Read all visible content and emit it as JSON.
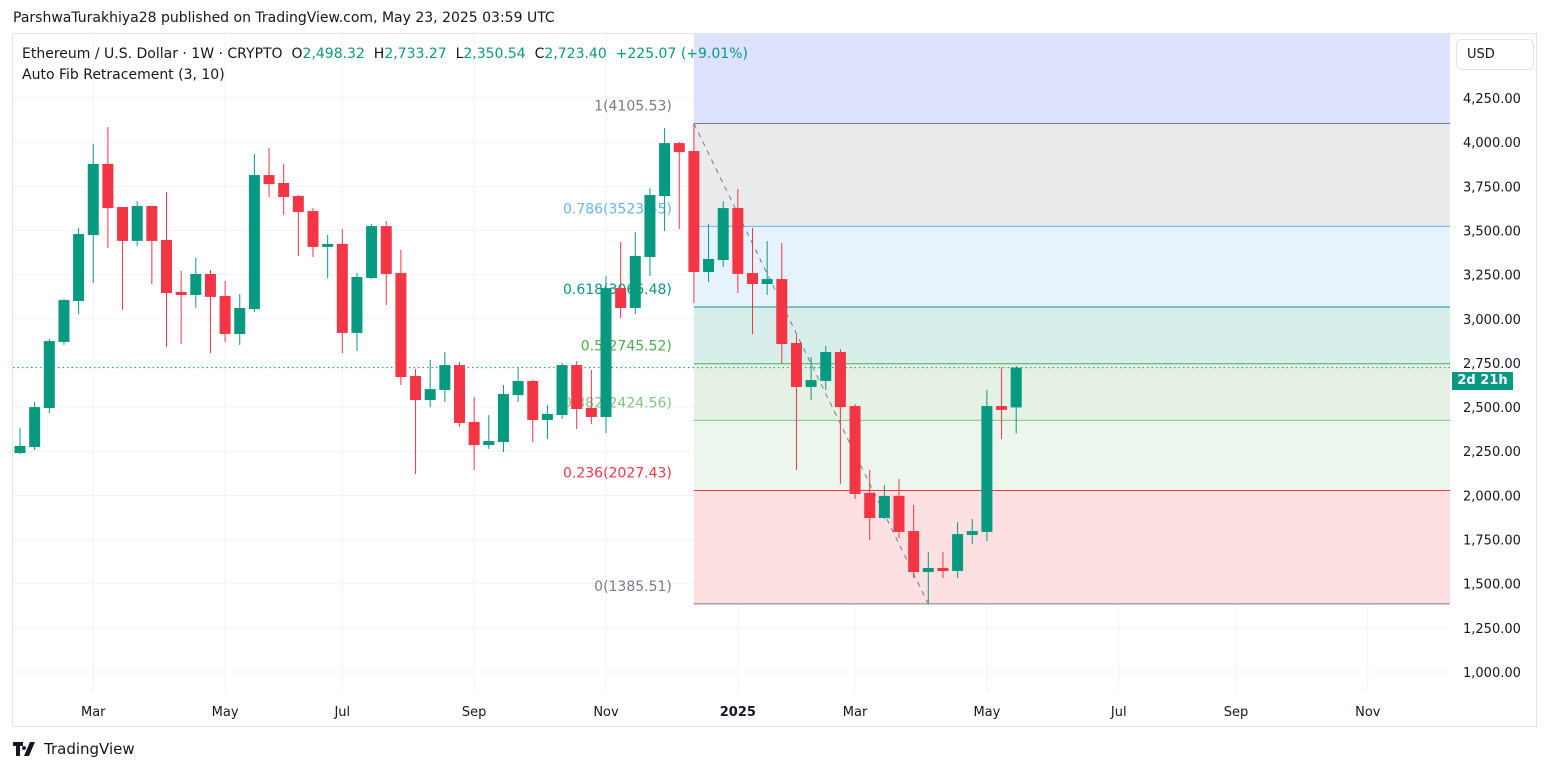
{
  "publish_line": "ParshwaTurakhiya28 published on TradingView.com, May 23, 2025 03:59 UTC",
  "legend": {
    "symbol": "Ethereum / U.S. Dollar · 1W · CRYPTO",
    "o_label": "O",
    "o": "2,498.32",
    "h_label": "H",
    "h": "2,733.27",
    "l_label": "L",
    "l": "2,350.54",
    "c_label": "C",
    "c": "2,723.40",
    "change": "+225.07 (+9.01%)",
    "indicator": "Auto Fib Retracement (3, 10)"
  },
  "currency_button": "USD",
  "countdown_tag": "2d 21h",
  "brand": "TradingView",
  "colors": {
    "up": "#089981",
    "down": "#f23645",
    "grid": "#f0f3fa"
  },
  "chart_data": {
    "type": "candlestick",
    "ylim": [
      880,
      4480
    ],
    "y_ticks": [
      1000,
      1250,
      1500,
      1750,
      2000,
      2250,
      2500,
      2750,
      3000,
      3250,
      3500,
      3750,
      4000,
      4250
    ],
    "y_tick_labels": [
      "1,000.00",
      "1,250.00",
      "1,500.00",
      "1,750.00",
      "2,000.00",
      "2,250.00",
      "2,500.00",
      "2,750.00",
      "3,000.00",
      "3,250.00",
      "3,500.00",
      "3,750.00",
      "4,000.00",
      "4,250.00"
    ],
    "last_price": 2723.4,
    "x_ticks": [
      {
        "date": "2024-03-04",
        "label": "Mar"
      },
      {
        "date": "2024-05-06",
        "label": "May"
      },
      {
        "date": "2024-07-01",
        "label": "Jul"
      },
      {
        "date": "2024-09-02",
        "label": "Sep"
      },
      {
        "date": "2024-11-04",
        "label": "Nov"
      },
      {
        "date": "2025-01-06",
        "label": "2025",
        "bold": true
      },
      {
        "date": "2025-03-03",
        "label": "Mar"
      },
      {
        "date": "2025-05-05",
        "label": "May"
      },
      {
        "date": "2025-07-07",
        "label": "Jul"
      },
      {
        "date": "2025-09-01",
        "label": "Sep"
      },
      {
        "date": "2025-11-03",
        "label": "Nov"
      }
    ],
    "candles_columns": [
      "date",
      "open",
      "high",
      "low",
      "close"
    ],
    "candles": [
      [
        "2024-01-29",
        2240,
        2382,
        2234,
        2280
      ],
      [
        "2024-02-05",
        2274,
        2529,
        2257,
        2500
      ],
      [
        "2024-02-12",
        2495,
        2886,
        2467,
        2874
      ],
      [
        "2024-02-19",
        2869,
        3112,
        2852,
        3106
      ],
      [
        "2024-02-26",
        3101,
        3514,
        3027,
        3480
      ],
      [
        "2024-03-04",
        3474,
        3990,
        3203,
        3877
      ],
      [
        "2024-03-11",
        3877,
        4086,
        3401,
        3627
      ],
      [
        "2024-03-18",
        3633,
        3633,
        3050,
        3441
      ],
      [
        "2024-03-25",
        3441,
        3667,
        3412,
        3639
      ],
      [
        "2024-04-01",
        3639,
        3639,
        3197,
        3441
      ],
      [
        "2024-04-08",
        3446,
        3718,
        2840,
        3146
      ],
      [
        "2024-04-15",
        3152,
        3271,
        2857,
        3135
      ],
      [
        "2024-04-22",
        3135,
        3344,
        3061,
        3254
      ],
      [
        "2024-04-29",
        3254,
        3276,
        2806,
        3124
      ],
      [
        "2024-05-06",
        3129,
        3214,
        2869,
        2914
      ],
      [
        "2024-05-13",
        2914,
        3140,
        2852,
        3061
      ],
      [
        "2024-05-20",
        3055,
        3933,
        3039,
        3814
      ],
      [
        "2024-05-27",
        3814,
        3967,
        3690,
        3763
      ],
      [
        "2024-06-03",
        3769,
        3877,
        3588,
        3690
      ],
      [
        "2024-06-10",
        3695,
        3701,
        3356,
        3605
      ],
      [
        "2024-06-17",
        3610,
        3627,
        3350,
        3407
      ],
      [
        "2024-06-24",
        3407,
        3474,
        3231,
        3424
      ],
      [
        "2024-07-01",
        3424,
        3508,
        2806,
        2920
      ],
      [
        "2024-07-08",
        2920,
        3259,
        2818,
        3237
      ],
      [
        "2024-07-15",
        3231,
        3537,
        3225,
        3525
      ],
      [
        "2024-07-22",
        3525,
        3554,
        3078,
        3254
      ],
      [
        "2024-07-29",
        3259,
        3390,
        2625,
        2670
      ],
      [
        "2024-08-05",
        2676,
        2716,
        2121,
        2540
      ],
      [
        "2024-08-12",
        2540,
        2767,
        2500,
        2602
      ],
      [
        "2024-08-19",
        2597,
        2812,
        2529,
        2738
      ],
      [
        "2024-08-26",
        2738,
        2755,
        2387,
        2410
      ],
      [
        "2024-09-02",
        2416,
        2557,
        2144,
        2285
      ],
      [
        "2024-09-09",
        2285,
        2455,
        2263,
        2308
      ],
      [
        "2024-09-16",
        2302,
        2625,
        2246,
        2574
      ],
      [
        "2024-09-23",
        2568,
        2721,
        2529,
        2648
      ],
      [
        "2024-09-30",
        2648,
        2653,
        2302,
        2427
      ],
      [
        "2024-10-07",
        2427,
        2512,
        2319,
        2461
      ],
      [
        "2024-10-14",
        2455,
        2750,
        2433,
        2738
      ],
      [
        "2024-10-21",
        2738,
        2761,
        2376,
        2489
      ],
      [
        "2024-10-28",
        2495,
        2710,
        2404,
        2444
      ],
      [
        "2024-11-04",
        2444,
        3242,
        2353,
        3174
      ],
      [
        "2024-11-11",
        3174,
        3435,
        3004,
        3061
      ],
      [
        "2024-11-18",
        3061,
        3491,
        3027,
        3356
      ],
      [
        "2024-11-25",
        3350,
        3741,
        3242,
        3701
      ],
      [
        "2024-12-02",
        3695,
        4080,
        3497,
        3995
      ],
      [
        "2024-12-09",
        3995,
        4001,
        3508,
        3944
      ],
      [
        "2024-12-16",
        3950,
        4105.53,
        3089,
        3265
      ],
      [
        "2024-12-23",
        3265,
        3537,
        3208,
        3339
      ],
      [
        "2024-12-30",
        3333,
        3667,
        3293,
        3627
      ],
      [
        "2025-01-06",
        3627,
        3735,
        3146,
        3254
      ],
      [
        "2025-01-13",
        3259,
        3514,
        2914,
        3197
      ],
      [
        "2025-01-20",
        3197,
        3440,
        3135,
        3225
      ],
      [
        "2025-01-27",
        3225,
        3429,
        2744,
        2857
      ],
      [
        "2025-02-03",
        2863,
        2908,
        2144,
        2614
      ],
      [
        "2025-02-10",
        2614,
        2784,
        2540,
        2653
      ],
      [
        "2025-02-17",
        2648,
        2846,
        2597,
        2812
      ],
      [
        "2025-02-24",
        2812,
        2829,
        2065,
        2500
      ],
      [
        "2025-03-03",
        2506,
        2517,
        1980,
        2008
      ],
      [
        "2025-03-10",
        2014,
        2144,
        1747,
        1872
      ],
      [
        "2025-03-17",
        1872,
        2059,
        1866,
        1997
      ],
      [
        "2025-03-24",
        1997,
        2093,
        1759,
        1793
      ],
      [
        "2025-03-31",
        1798,
        1946,
        1532,
        1566
      ],
      [
        "2025-04-07",
        1566,
        1680,
        1385.51,
        1589
      ],
      [
        "2025-04-14",
        1589,
        1680,
        1532,
        1572
      ],
      [
        "2025-04-21",
        1572,
        1849,
        1532,
        1781
      ],
      [
        "2025-04-28",
        1776,
        1866,
        1725,
        1798
      ],
      [
        "2025-05-05",
        1793,
        2597,
        1742,
        2506
      ],
      [
        "2025-05-12",
        2506,
        2727,
        2319,
        2484
      ],
      [
        "2025-05-19",
        2498.32,
        2733.27,
        2350.54,
        2723.4
      ]
    ],
    "fib": {
      "start_date": "2024-12-16",
      "end_date": "2025-04-07",
      "levels": [
        {
          "ratio": 1,
          "price": 4105.53,
          "label": "1(4105.53)",
          "color": "#787b86",
          "fill": "#ebebed"
        },
        {
          "ratio": 0.786,
          "price": 3523.45,
          "label": "0.786(3523.45)",
          "color": "#64b5f6",
          "fill": "#e6f3fd"
        },
        {
          "ratio": 0.618,
          "price": 3066.48,
          "label": "0.618(3066.48)",
          "color": "#089981",
          "fill": "#d8eeeb"
        },
        {
          "ratio": 0.5,
          "price": 2745.52,
          "label": "0.5(2745.52)",
          "color": "#4caf50",
          "fill": "#e4f1e4"
        },
        {
          "ratio": 0.382,
          "price": 2424.56,
          "label": "0.382(2424.56)",
          "color": "#81c784",
          "fill": "#ecf6ec"
        },
        {
          "ratio": 0.236,
          "price": 2027.43,
          "label": "0.236(2027.43)",
          "color": "#f23645",
          "fill": "#fde0e1"
        },
        {
          "ratio": 0,
          "price": 1385.51,
          "label": "0(1385.51)",
          "color": "#787b86",
          "fill": null
        }
      ],
      "above_fill": "#dde3fd"
    }
  }
}
